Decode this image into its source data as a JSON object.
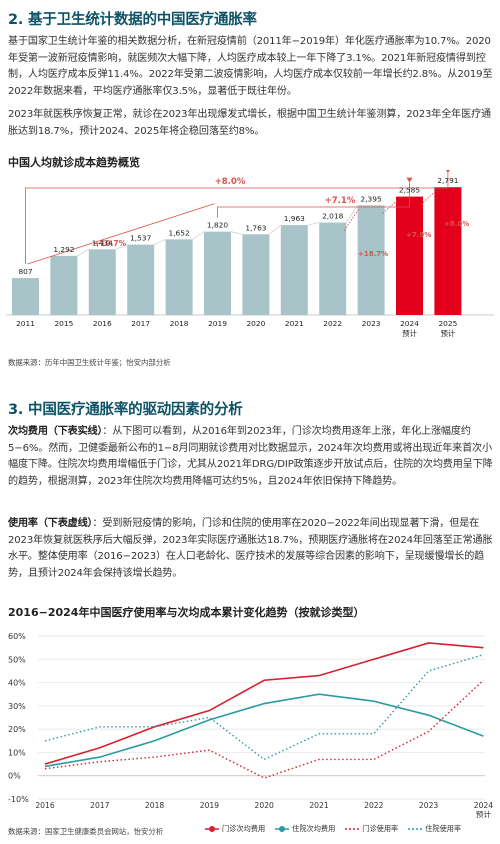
{
  "section2": {
    "heading": "2. 基于卫生统计数据的中国医疗通胀率",
    "para1": "基于国家卫生统计年鉴的相关数据分析，在新冠疫情前（2011年−2019年）年化医疗通胀率为10.7%。2020年受第一波新冠疫情影响，就医频次大幅下降，人均医疗成本较上一年下降了3.1%。2021年新冠疫情得到控制，人均医疗成本反弹11.4%。2022年受第二波疫情影响，人均医疗成本仅较前一年增长约2.8%。从2019至2022年数据来看，平均医疗通胀率仅3.5%，显著低于既往年份。",
    "para2": "2023年就医秩序恢复正常，就诊在2023年出现爆发式增长，根据中国卫生统计年鉴测算，2023年全年医疗通胀达到18.7%，预计2024、2025年将企稳回落至约8%。"
  },
  "chart1": {
    "title": "中国人均就诊成本趋势概览",
    "source": "数据来源：历年中国卫生统计年鉴；怡安内部分析",
    "colors": {
      "actual": "#a9c4c8",
      "forecast": "#e3001b",
      "arrow": "#d9534f",
      "link": "#cccccc"
    },
    "annotations": [
      "+10.7%",
      "+8.0%",
      "+7.1%",
      "+18.7%",
      "+7.9%",
      "+8.0%"
    ]
  },
  "chart_data": [
    {
      "type": "bar",
      "title": "中国人均就诊成本趋势概览",
      "categories": [
        "2011",
        "2015",
        "2016",
        "2017",
        "2018",
        "2019",
        "2020",
        "2021",
        "2022",
        "2023",
        "2024 预计",
        "2025 预计"
      ],
      "values": [
        807,
        1292,
        1434,
        1537,
        1652,
        1820,
        1763,
        1963,
        2018,
        2395,
        2585,
        2791
      ],
      "labels": [
        "807",
        "1,292",
        "1,434",
        "1,537",
        "1,652",
        "1,820",
        "1,763",
        "1,963",
        "2,018",
        "2,395",
        "2,585",
        "2,791"
      ],
      "forecast": [
        false,
        false,
        false,
        false,
        false,
        false,
        false,
        false,
        false,
        false,
        true,
        true
      ]
    },
    {
      "type": "line",
      "title": "2016−2024年中国医疗使用率与次均成本累计变化趋势（按就诊类型）",
      "x": [
        "2016",
        "2017",
        "2018",
        "2019",
        "2020",
        "2021",
        "2022",
        "2023",
        "2024 预计"
      ],
      "y_ticks": [
        "60%",
        "50%",
        "40%",
        "30%",
        "20%",
        "10%",
        "0%",
        "-10%"
      ],
      "ylim": [
        -10,
        60
      ],
      "grid": true,
      "series": [
        {
          "name": "门诊次均费用",
          "style": "solid",
          "color": "#d7202f",
          "values": [
            5,
            12,
            21,
            28,
            41,
            43,
            50,
            57,
            55
          ]
        },
        {
          "name": "住院次均费用",
          "style": "solid",
          "color": "#2a9ba3",
          "values": [
            4,
            8,
            15,
            24,
            31,
            35,
            32,
            26,
            17
          ]
        },
        {
          "name": "门诊使用率",
          "style": "dotted",
          "color": "#d7202f",
          "values": [
            3,
            6,
            8,
            11,
            -1,
            7,
            7,
            19,
            41
          ]
        },
        {
          "name": "住院使用率",
          "style": "dotted",
          "color": "#2a9ba3",
          "values": [
            15,
            21,
            21,
            25,
            7,
            18,
            18,
            45,
            52
          ]
        }
      ]
    }
  ],
  "section3": {
    "heading": "3. 中国医疗通胀率的驱动因素的分析",
    "p1_lead": "次均费用（下表实线）",
    "p1_text": "：从下图可以看到，从2016年到2023年，门诊次均费用逐年上涨，年化上涨幅度约5−6%。然而，卫健委最新公布的1−8月同期就诊费用对比数据显示，2024年次均费用或将出现近年来首次小幅度下降。住院次均费用增幅低于门诊，尤其从2021年DRG/DIP政策逐步开放试点后，住院的次均费用呈下降的趋势，根据测算，2023年住院次均费用降幅可达约5%，且2024年依旧保持下降趋势。",
    "p2_lead": "使用率（下表虚线）",
    "p2_text": "：受到新冠疫情的影响，门诊和住院的使用率在2020−2022年间出现显著下滑，但是在2023年恢复就医秩序后大幅反弹，2023年实际医疗通胀达18.7%，预期医疗通胀将在2024年回落至正常通胀水平。整体使用率（2016−2023）在人口老龄化、医疗技术的发展等综合因素的影响下，呈现缓慢增长的趋势，且预计2024年会保持该增长趋势。"
  },
  "chart2": {
    "title": "2016−2024年中国医疗使用率与次均成本累计变化趋势（按就诊类型）",
    "source": "数据来源：国家卫生健康委员会网站，怡安分析"
  }
}
